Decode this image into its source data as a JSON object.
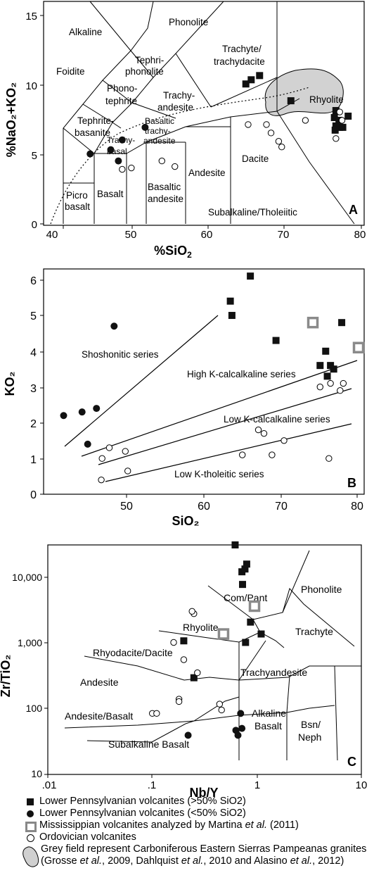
{
  "charts": {
    "tas": {
      "panel_letter": "A",
      "xlabel_main": "%SiO",
      "xlabel_sub": "2",
      "ylabel": "%NaO₂+KO₂",
      "xticks": [
        "40",
        "50",
        "60",
        "70",
        "80"
      ],
      "yticks": [
        "0",
        "5",
        "10",
        "15"
      ],
      "fields": {
        "alkaline": "Alkaline",
        "phonolite": "Phonolite",
        "foidite": "Foidite",
        "tephriphonolite_1": "Tephri-",
        "tephriphonolite_2": "phonolite",
        "trachyte_1": "Trachyte/",
        "trachyte_2": "trachydacite",
        "phonotephrite_1": "Phono-",
        "phonotephrite_2": "tephrite",
        "trachyandesite_1": "Trachy-",
        "trachyandesite_2": "andesite",
        "tephrite_1": "Tephrite-",
        "tephrite_2": "basanite",
        "trachybasalt_1": "Trachy-",
        "trachybasalt_2": "basal",
        "btrachy_1": "Basaltic",
        "btrachy_2": "trachy-",
        "btrachy_3": "andesite",
        "rhyolite": "Rhyolite",
        "picro_1": "Picro",
        "picro_2": "basalt",
        "basalt": "Basalt",
        "basandesite_1": "Basaltic",
        "basandesite_2": "andesite",
        "andesite": "Andesite",
        "dacite": "Dacite",
        "subalkaline": "Subalkaline/Tholeiitic"
      }
    },
    "kso": {
      "panel_letter": "B",
      "xlabel": "SiO₂",
      "ylabel": "KO₂",
      "xticks": [
        "50",
        "60",
        "70",
        "80"
      ],
      "yticks": [
        "0",
        "1",
        "2",
        "3",
        "4",
        "5",
        "6"
      ],
      "series_labels": {
        "shoshonitic": "Shoshonitic series",
        "highk": "High K-calcalkaline series",
        "lowk": "Low K-calcalkaline series",
        "tholeiitic": "Low K-tholeitic series"
      }
    },
    "zr": {
      "panel_letter": "C",
      "xlabel": "Nb/Y",
      "ylabel": "Zr/TiO₂",
      "xticks": [
        ".01",
        ".1",
        "1",
        "10"
      ],
      "yticks": [
        "10",
        "100",
        "1,000",
        "10,000"
      ],
      "fields": {
        "phonolite": "Phonolite",
        "compant": "Com/Pant",
        "trachyte": "Trachyte",
        "rhyolite": "Rhyolite",
        "rhyodacite": "Rhyodacite/Dacite",
        "trachyandesite": "Trachyandesite",
        "andesite": "Andesite",
        "bsn_1": "Bsn/",
        "bsn_2": "Neph",
        "andbas": "Andesite/Basalt",
        "alk_1": "Alkaline",
        "alk_2": "Basalt",
        "subalk": "Subalkaline Basalt"
      }
    }
  },
  "legend": {
    "lp_high": "Lower Pennsylvanian volcanites (>50% SiO2)",
    "lp_low": "Lower Pennsylvanian volcanites (<50% SiO2)",
    "miss_a": "Mississippian volcanites analyzed by Martina ",
    "miss_b": "et al.",
    "miss_c": " (2011)",
    "ord": "Ordovician volcanites",
    "grey_a": "Grey field represent Carboniferous Eastern Sierras Pampeanas granites (Grosse ",
    "grey_b": "et al.",
    "grey_c": ", 2009, Dahlquist ",
    "grey_d": "et al.",
    "grey_e": ", 2010 and Alasino ",
    "grey_f": "et al.",
    "grey_g": ", 2012)"
  },
  "chart_data": [
    {
      "type": "scatter",
      "panel": "A",
      "xlabel": "%SiO2",
      "ylabel": "%NaO2+KO2",
      "xlim": [
        38,
        80
      ],
      "ylim": [
        0,
        16
      ],
      "series": [
        {
          "name": "Lower Pennsylvanian volcanites (>50% SiO2)",
          "points": [
            [
              64.5,
              10.1
            ],
            [
              65.2,
              10.4
            ],
            [
              66.3,
              10.7
            ],
            [
              70.4,
              8.9
            ],
            [
              76.3,
              8.2
            ],
            [
              76.1,
              7.7
            ],
            [
              76.7,
              7.5
            ],
            [
              76.3,
              7.1
            ],
            [
              76.8,
              7.0
            ],
            [
              76.2,
              6.8
            ],
            [
              77.2,
              7.0
            ],
            [
              77.9,
              7.8
            ]
          ]
        },
        {
          "name": "Lower Pennsylvanian volcanites (<50% SiO2)",
          "points": [
            [
              44.1,
              5.1
            ],
            [
              46.8,
              5.4
            ],
            [
              48.3,
              6.1
            ],
            [
              47.8,
              4.6
            ],
            [
              51.3,
              7.0
            ]
          ]
        },
        {
          "name": "Ordovician volcanites",
          "points": [
            [
              48.3,
              4.0
            ],
            [
              49.5,
              4.1
            ],
            [
              53.5,
              4.6
            ],
            [
              55.2,
              4.2
            ],
            [
              64.8,
              7.2
            ],
            [
              67.2,
              7.2
            ],
            [
              67.8,
              6.6
            ],
            [
              68.8,
              6.0
            ],
            [
              69.2,
              5.6
            ],
            [
              72.3,
              7.5
            ],
            [
              76.3,
              6.2
            ],
            [
              77.1,
              7.5
            ],
            [
              76.8,
              8.1
            ]
          ]
        }
      ]
    },
    {
      "type": "scatter",
      "panel": "B",
      "xlabel": "SiO2",
      "ylabel": "KO2",
      "xlim": [
        40,
        80
      ],
      "ylim": [
        0,
        6.3
      ],
      "series": [
        {
          "name": "Lower Pennsylvanian volcanites (>50% SiO2)",
          "points": [
            [
              63.3,
              5.4
            ],
            [
              63.5,
              5.0
            ],
            [
              65.8,
              6.1
            ],
            [
              69.0,
              4.3
            ],
            [
              74.5,
              3.6
            ],
            [
              75.2,
              4.0
            ],
            [
              75.4,
              3.3
            ],
            [
              75.8,
              3.6
            ],
            [
              76.2,
              3.5
            ],
            [
              77.2,
              4.8
            ]
          ]
        },
        {
          "name": "Lower Pennsylvanian volcanites (<50% SiO2)",
          "points": [
            [
              42.5,
              2.2
            ],
            [
              44.8,
              2.3
            ],
            [
              46.6,
              2.4
            ],
            [
              48.8,
              4.7
            ],
            [
              45.5,
              1.4
            ]
          ]
        },
        {
          "name": "Mississippian volcanites analyzed by Martina et al. (2011)",
          "points": [
            [
              73.6,
              4.8
            ],
            [
              79.3,
              4.1
            ]
          ]
        },
        {
          "name": "Ordovician volcanites",
          "points": [
            [
              47.2,
              0.4
            ],
            [
              47.3,
              1.0
            ],
            [
              48.2,
              1.3
            ],
            [
              50.2,
              1.2
            ],
            [
              50.5,
              0.65
            ],
            [
              64.8,
              1.1
            ],
            [
              66.8,
              1.8
            ],
            [
              67.5,
              1.7
            ],
            [
              68.5,
              1.1
            ],
            [
              70.0,
              1.5
            ],
            [
              74.5,
              3.0
            ],
            [
              75.8,
              3.1
            ],
            [
              77.0,
              2.9
            ],
            [
              77.4,
              3.1
            ],
            [
              75.6,
              1.0
            ]
          ]
        }
      ]
    },
    {
      "type": "scatter",
      "panel": "C",
      "xlabel": "Nb/Y",
      "ylabel": "Zr/TiO2",
      "xscale": "log",
      "yscale": "log",
      "xlim": [
        0.01,
        10
      ],
      "ylim": [
        10,
        25000
      ],
      "series": [
        {
          "name": "Lower Pennsylvanian volcanites (>50% SiO2)",
          "points": [
            [
              0.62,
              25000
            ],
            [
              0.72,
              10000
            ],
            [
              0.77,
              11000
            ],
            [
              0.8,
              13000
            ],
            [
              0.73,
              6500
            ],
            [
              0.87,
              1800
            ],
            [
              0.78,
              900
            ],
            [
              1.1,
              1200
            ],
            [
              0.2,
              950
            ],
            [
              0.25,
              270
            ]
          ]
        },
        {
          "name": "Lower Pennsylvanian volcanites (<50% SiO2)",
          "points": [
            [
              0.63,
              45
            ],
            [
              0.66,
              38
            ],
            [
              0.72,
              48
            ],
            [
              0.7,
              80
            ],
            [
              0.22,
              38
            ]
          ]
        },
        {
          "name": "Mississippian volcanites analyzed by Martina et al. (2011)",
          "points": [
            [
              0.95,
              3100
            ],
            [
              0.48,
              1200
            ]
          ]
        },
        {
          "name": "Ordovician volcanites",
          "points": [
            [
              0.25,
              2400
            ],
            [
              0.16,
              900
            ],
            [
              0.2,
              500
            ],
            [
              0.27,
              320
            ],
            [
              0.18,
              130
            ],
            [
              0.18,
              120
            ],
            [
              0.1,
              80
            ],
            [
              0.11,
              80
            ],
            [
              0.44,
              110
            ],
            [
              0.46,
              90
            ],
            [
              0.24,
              2600
            ]
          ]
        }
      ]
    }
  ]
}
